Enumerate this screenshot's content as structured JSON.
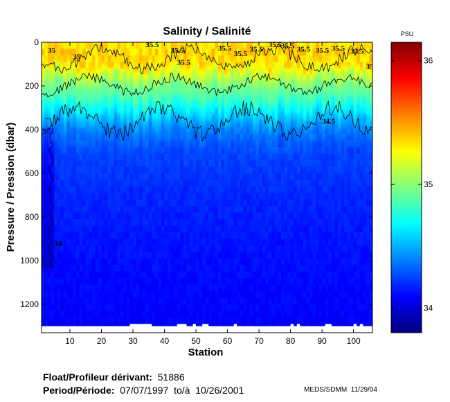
{
  "chart_data": {
    "type": "heatmap",
    "title": "Salinity / Salinité",
    "xlabel": "Station",
    "ylabel": "Pressure / Pression (dbar)",
    "xlim": [
      1,
      106
    ],
    "ylim": [
      1330,
      0
    ],
    "y_reversed": true,
    "x_ticks": [
      10,
      20,
      30,
      40,
      50,
      60,
      70,
      80,
      90,
      100
    ],
    "y_ticks": [
      0,
      200,
      400,
      600,
      800,
      1000,
      1200
    ],
    "grid": false,
    "colorbar": {
      "label": "PSU",
      "range": [
        33.8,
        36.15
      ],
      "ticks": [
        34,
        35,
        36
      ],
      "colormap": "jet"
    },
    "profile": [
      {
        "p": 0,
        "s": 35.32
      },
      {
        "p": 50,
        "s": 35.38
      },
      {
        "p": 100,
        "s": 35.33
      },
      {
        "p": 150,
        "s": 35.12
      },
      {
        "p": 200,
        "s": 34.95
      },
      {
        "p": 250,
        "s": 34.85
      },
      {
        "p": 300,
        "s": 34.68
      },
      {
        "p": 350,
        "s": 34.52
      },
      {
        "p": 400,
        "s": 34.38
      },
      {
        "p": 500,
        "s": 34.25
      },
      {
        "p": 700,
        "s": 34.18
      },
      {
        "p": 1000,
        "s": 34.12
      },
      {
        "p": 1330,
        "s": 34.08
      }
    ],
    "isohalines": [
      {
        "value": 35.5,
        "depth_range": [
          30,
          120
        ]
      },
      {
        "value": 35,
        "depth_range": [
          160,
          230
        ]
      },
      {
        "value": 34.5,
        "depth_range": [
          300,
          420
        ]
      },
      {
        "value": 34,
        "depth_range": [
          350,
          1030
        ],
        "stations": [
          2,
          5
        ]
      }
    ],
    "contour_labels": [
      {
        "text": "35",
        "x": 3,
        "y": 35
      },
      {
        "text": "35",
        "x": 11,
        "y": 65
      },
      {
        "text": "35.5",
        "x": 34,
        "y": 10
      },
      {
        "text": "35.5",
        "x": 42,
        "y": 35
      },
      {
        "text": "35.5",
        "x": 44,
        "y": 90
      },
      {
        "text": "35.5",
        "x": 57,
        "y": 25
      },
      {
        "text": "35.5",
        "x": 62,
        "y": 50
      },
      {
        "text": "35.5",
        "x": 67,
        "y": 30
      },
      {
        "text": "35.5",
        "x": 73,
        "y": 10
      },
      {
        "text": "35.5",
        "x": 77,
        "y": 15
      },
      {
        "text": "35.5",
        "x": 82,
        "y": 30
      },
      {
        "text": "35.5",
        "x": 88,
        "y": 35
      },
      {
        "text": "35.5",
        "x": 93,
        "y": 25
      },
      {
        "text": "35.5",
        "x": 99,
        "y": 40
      },
      {
        "text": "35",
        "x": 104,
        "y": 110
      },
      {
        "text": "34.5",
        "x": 90,
        "y": 360
      },
      {
        "text": "34",
        "x": 5,
        "y": 920
      }
    ],
    "missing_data_gaps": [
      {
        "x": [
          29,
          36
        ],
        "y": [
          1290,
          1330
        ]
      },
      {
        "x": [
          44,
          47
        ],
        "y": [
          1290,
          1330
        ]
      },
      {
        "x": [
          49,
          50
        ],
        "y": [
          1290,
          1330
        ]
      },
      {
        "x": [
          52,
          54
        ],
        "y": [
          1290,
          1330
        ]
      },
      {
        "x": [
          62,
          63
        ],
        "y": [
          1290,
          1330
        ]
      },
      {
        "x": [
          80,
          81
        ],
        "y": [
          1290,
          1330
        ]
      },
      {
        "x": [
          82,
          83
        ],
        "y": [
          1290,
          1330
        ]
      },
      {
        "x": [
          91,
          93
        ],
        "y": [
          1290,
          1330
        ]
      },
      {
        "x": [
          100,
          101
        ],
        "y": [
          1290,
          1330
        ]
      },
      {
        "x": [
          102,
          103
        ],
        "y": [
          1290,
          1330
        ]
      }
    ],
    "bottom_band": {
      "y": [
        1300,
        1330
      ]
    }
  },
  "footer": {
    "float_label": "Float/Profileur dérivant:",
    "float_id": "51886",
    "period_label": "Period/Période:",
    "period_start": "07/07/1997",
    "period_sep": "to/à",
    "period_end": "10/26/2001",
    "credit": "MEDS/SDMM  11/29/04"
  }
}
